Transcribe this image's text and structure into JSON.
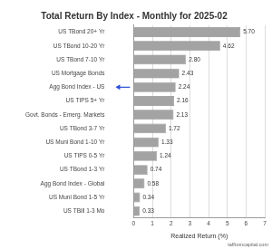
{
  "chart_data": {
    "type": "bar",
    "orientation": "horizontal",
    "title": "Total Return By Index - Monthly for 2025-02",
    "x_label": "Realized Return (%)",
    "categories": [
      "US TBond 20+ Yr",
      "US TBond 10-20 Yr",
      "US TBond 7-10 Yr",
      "US Mortgage Bonds",
      "Agg Bond Index - US",
      "US TIPS 5+ Yr",
      "Govt. Bonds - Emerg. Markets",
      "US TBond 3-7 Yr",
      "US Muni Bond 1-10 Yr",
      "US TIPS 0-5 Yr",
      "US TBond 1-3 Yr",
      "Agg Bond Index - Global",
      "US Muni Bond 1-5 Yr",
      "US TBill 1-3 Mo"
    ],
    "values": [
      5.7,
      4.62,
      2.8,
      2.43,
      2.24,
      2.16,
      2.13,
      1.72,
      1.33,
      1.24,
      0.74,
      0.58,
      0.34,
      0.33
    ],
    "value_labels": [
      "5.70",
      "4.62",
      "2.80",
      "2.43",
      "2.24",
      "2.16",
      "2.13",
      "1.72",
      "1.33",
      "1.24",
      "0.74",
      "0.58",
      "0.34",
      "0.33"
    ],
    "color": "#a3a3a3",
    "xlim": [
      0,
      7
    ],
    "xticks": [
      0,
      1,
      2,
      3,
      4,
      5,
      6,
      7
    ],
    "grid": true,
    "data_labels": true,
    "annotations": [
      {
        "type": "arrow",
        "category": "Agg Bond Index - US",
        "color": "#2b4fd8"
      },
      {
        "text": "taffromcapital.com"
      }
    ]
  }
}
